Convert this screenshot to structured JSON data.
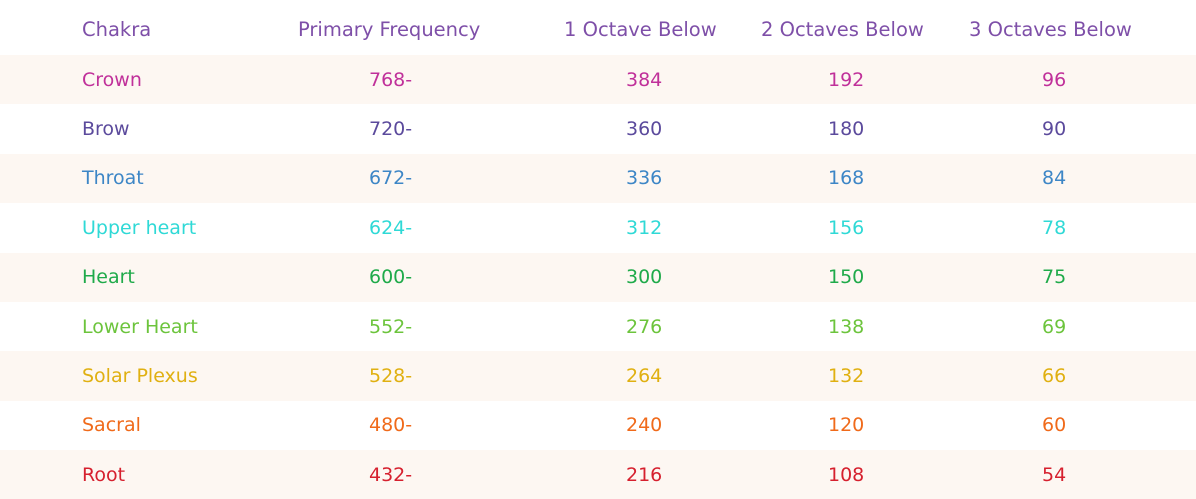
{
  "header": {
    "col_chakra": "Chakra",
    "col_primary": "Primary Frequency",
    "col_oct1": "1 Octave Below",
    "col_oct2": "2 Octaves Below",
    "col_oct3": "3 Octaves Below",
    "color": "#7e4fa8"
  },
  "rows": [
    {
      "name": "Crown",
      "primary": "768-",
      "oct1": "384",
      "oct2": "192",
      "oct3": "96",
      "color": "#c0309a"
    },
    {
      "name": "Brow",
      "primary": "720-",
      "oct1": "360",
      "oct2": "180",
      "oct3": "90",
      "color": "#5b4a9c"
    },
    {
      "name": "Throat",
      "primary": "672-",
      "oct1": "336",
      "oct2": "168",
      "oct3": "84",
      "color": "#3d86c6"
    },
    {
      "name": "Upper heart",
      "primary": "624-",
      "oct1": "312",
      "oct2": "156",
      "oct3": "78",
      "color": "#2fd9d6"
    },
    {
      "name": "Heart",
      "primary": "600-",
      "oct1": "300",
      "oct2": "150",
      "oct3": "75",
      "color": "#1faa4a"
    },
    {
      "name": "Lower Heart",
      "primary": "552-",
      "oct1": "276",
      "oct2": "138",
      "oct3": "69",
      "color": "#6cc43c"
    },
    {
      "name": "Solar Plexus",
      "primary": "528-",
      "oct1": "264",
      "oct2": "132",
      "oct3": "66",
      "color": "#e0b011"
    },
    {
      "name": "Sacral",
      "primary": "480-",
      "oct1": "240",
      "oct2": "120",
      "oct3": "60",
      "color": "#f06a1a"
    },
    {
      "name": "Root",
      "primary": "432-",
      "oct1": "216",
      "oct2": "108",
      "oct3": "54",
      "color": "#d6202e"
    }
  ],
  "stripe_color": "#fdf7f2"
}
